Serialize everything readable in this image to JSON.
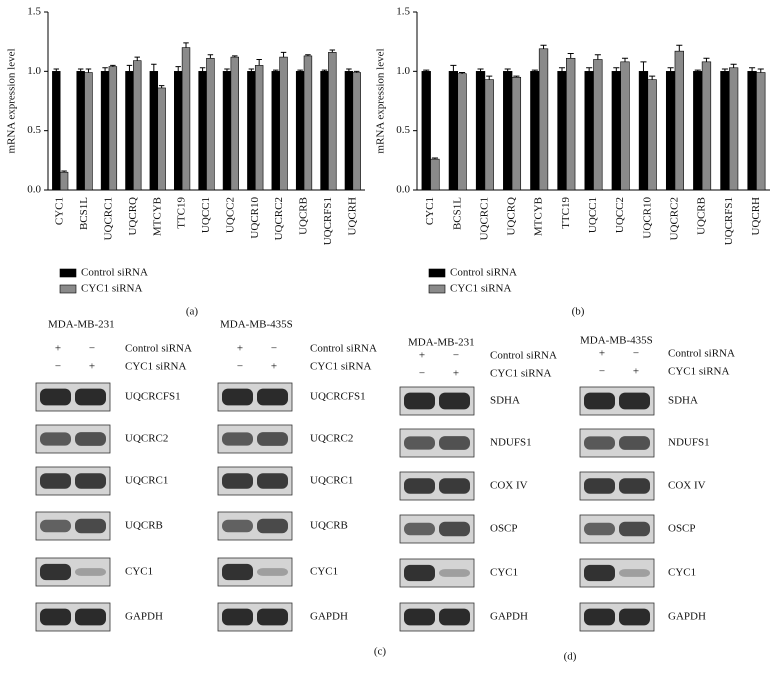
{
  "chart_data": [
    {
      "type": "bar",
      "panel_label": "(a)",
      "y_label": "mRNA expression level",
      "legend": "below",
      "categories": [
        "CYC1",
        "BCS1L",
        "UQCRC1",
        "UQCRQ",
        "MTCYB",
        "TTC19",
        "UQCC1",
        "UQCC2",
        "UQCR10",
        "UQCRC2",
        "UQCRB",
        "UQCRFS1",
        "UQCRH"
      ],
      "ylim": [
        0,
        1.5
      ],
      "yticks": [
        {
          "value": 0,
          "label": "0.0"
        },
        0.5,
        {
          "value": 1,
          "label": "1.0"
        },
        1.5
      ],
      "series": [
        {
          "name": "Control siRNA",
          "color": "#000000",
          "values": [
            1,
            1,
            1,
            1,
            1,
            1,
            1,
            1,
            1,
            1,
            1,
            1,
            1
          ],
          "errors": [
            0.02,
            0.02,
            0.03,
            0.05,
            0.06,
            0.04,
            0.03,
            0.02,
            0.02,
            0.01,
            0.01,
            0.01,
            0.02
          ]
        },
        {
          "name": "CYC1 siRNA",
          "color": "#8a8a8a",
          "values": [
            0.15,
            0.99,
            1.04,
            1.09,
            0.86,
            1.2,
            1.11,
            1.12,
            1.05,
            1.12,
            1.13,
            1.16,
            0.99
          ],
          "errors": [
            0.01,
            0.03,
            0.01,
            0.03,
            0.02,
            0.04,
            0.03,
            0.01,
            0.05,
            0.04,
            0.01,
            0.02,
            0.01
          ]
        }
      ]
    },
    {
      "type": "bar",
      "panel_label": "(b)",
      "y_label": "mRNA expression level",
      "legend": "below",
      "categories": [
        "CYC1",
        "BCS1L",
        "UQCRC1",
        "UQCRQ",
        "MTCYB",
        "TTC19",
        "UQCC1",
        "UQCC2",
        "UQCR10",
        "UQCRC2",
        "UQCRB",
        "UQCRFS1",
        "UQCRH"
      ],
      "ylim": [
        0,
        1.5
      ],
      "yticks": [
        {
          "value": 0,
          "label": "0.0"
        },
        0.5,
        {
          "value": 1,
          "label": "1.0"
        },
        1.5
      ],
      "series": [
        {
          "name": "Control siRNA",
          "color": "#000000",
          "values": [
            1,
            1,
            1,
            1,
            1,
            1,
            1,
            1,
            1,
            1,
            1,
            1,
            1
          ],
          "errors": [
            0.01,
            0.05,
            0.02,
            0.02,
            0.01,
            0.03,
            0.03,
            0.03,
            0.08,
            0.03,
            0.01,
            0.02,
            0.03
          ]
        },
        {
          "name": "CYC1 siRNA",
          "color": "#8a8a8a",
          "values": [
            0.26,
            0.98,
            0.93,
            0.95,
            1.19,
            1.11,
            1.1,
            1.08,
            0.93,
            1.17,
            1.08,
            1.03,
            0.99
          ],
          "errors": [
            0.01,
            0.01,
            0.03,
            0.01,
            0.03,
            0.04,
            0.04,
            0.03,
            0.03,
            0.05,
            0.03,
            0.03,
            0.03
          ]
        }
      ]
    }
  ],
  "blots": [
    {
      "panel_label": "(c)",
      "cells": [
        {
          "title": "MDA-MB-231",
          "conditions": [
            [
              "+",
              "−",
              "Control siRNA"
            ],
            [
              "−",
              "+",
              "CYC1 siRNA"
            ]
          ],
          "bands": [
            "UQCRCFS1",
            "UQCRC2",
            "UQCRC1",
            "UQCRB",
            "CYC1",
            "GAPDH"
          ]
        },
        {
          "title": "MDA-MB-435S",
          "conditions": [
            [
              "+",
              "−",
              "Control siRNA"
            ],
            [
              "−",
              "+",
              "CYC1 siRNA"
            ]
          ],
          "bands": [
            "UQCRCFS1",
            "UQCRC2",
            "UQCRC1",
            "UQCRB",
            "CYC1",
            "GAPDH"
          ]
        }
      ]
    },
    {
      "panel_label": "(d)",
      "cells": [
        {
          "title": "MDA-MB-231",
          "conditions": [
            [
              "+",
              "−",
              "Control siRNA"
            ],
            [
              "−",
              "+",
              "CYC1 siRNA"
            ]
          ],
          "bands": [
            "SDHA",
            "NDUFS1",
            "COX IV",
            "OSCP",
            "CYC1",
            "GAPDH"
          ]
        },
        {
          "title": "MDA-MB-435S",
          "conditions": [
            [
              "+",
              "−",
              "Control siRNA"
            ],
            [
              "−",
              "+",
              "CYC1 siRNA"
            ]
          ],
          "bands": [
            "SDHA",
            "NDUFS1",
            "COX IV",
            "OSCP",
            "CYC1",
            "GAPDH"
          ]
        }
      ]
    }
  ]
}
